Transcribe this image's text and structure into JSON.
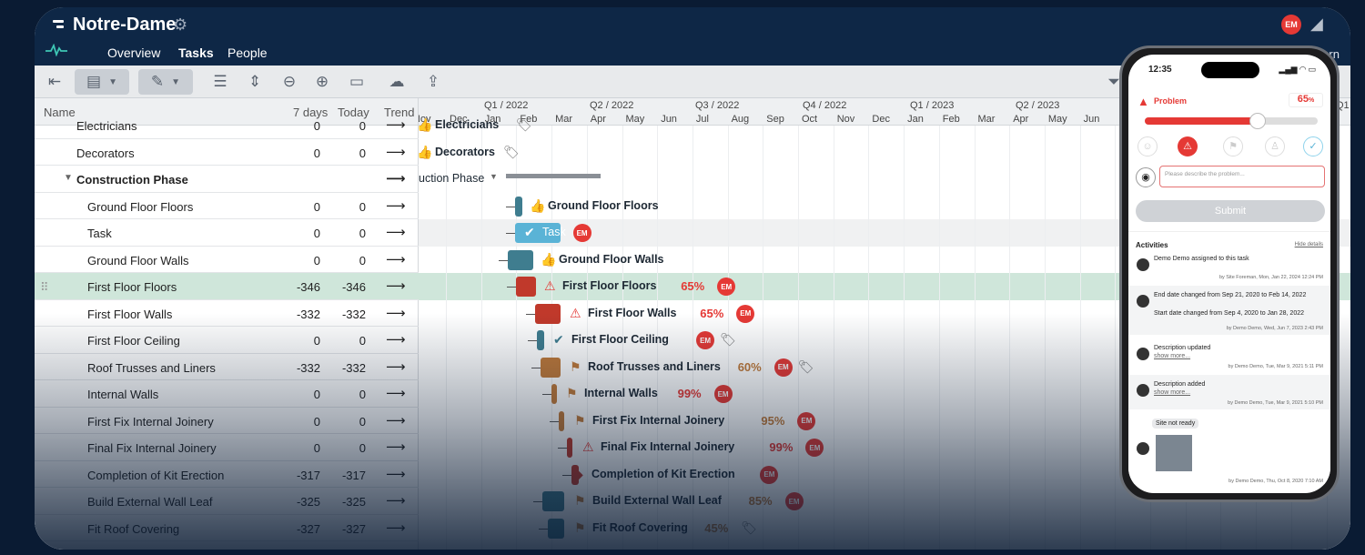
{
  "app": {
    "project_title": "Notre-Dame",
    "tabs": [
      "Overview",
      "Tasks",
      "People"
    ],
    "active_tab": "Tasks",
    "user_badge": "EM",
    "learn_label": "arn"
  },
  "grid": {
    "columns": {
      "name": "Name",
      "seven_days": "7 days",
      "today": "Today",
      "trend": "Trend"
    },
    "rows": [
      {
        "name": "Electricians",
        "d7": "0",
        "today": "0",
        "trend": "⟶"
      },
      {
        "name": "Decorators",
        "d7": "0",
        "today": "0",
        "trend": "⟶"
      },
      {
        "name": "Construction Phase",
        "d7": "",
        "today": "",
        "trend": "⟶"
      },
      {
        "name": "Ground Floor Floors",
        "d7": "0",
        "today": "0",
        "trend": "⟶"
      },
      {
        "name": "Task",
        "d7": "0",
        "today": "0",
        "trend": "⟶"
      },
      {
        "name": "Ground Floor Walls",
        "d7": "0",
        "today": "0",
        "trend": "⟶"
      },
      {
        "name": "First Floor Floors",
        "d7": "-346",
        "today": "-346",
        "trend": "⟶"
      },
      {
        "name": "First Floor Walls",
        "d7": "-332",
        "today": "-332",
        "trend": "⟶"
      },
      {
        "name": "First Floor Ceiling",
        "d7": "0",
        "today": "0",
        "trend": "⟶"
      },
      {
        "name": "Roof Trusses and Liners",
        "d7": "-332",
        "today": "-332",
        "trend": "⟶"
      },
      {
        "name": "Internal Walls",
        "d7": "0",
        "today": "0",
        "trend": "⟶"
      },
      {
        "name": "First Fix Internal Joinery",
        "d7": "0",
        "today": "0",
        "trend": "⟶"
      },
      {
        "name": "Final Fix Internal Joinery",
        "d7": "0",
        "today": "0",
        "trend": "⟶"
      },
      {
        "name": "Completion of Kit Erection",
        "d7": "-317",
        "today": "-317",
        "trend": "⟶"
      },
      {
        "name": "Build External Wall Leaf",
        "d7": "-325",
        "today": "-325",
        "trend": "⟶"
      },
      {
        "name": "Fit Roof Covering",
        "d7": "-327",
        "today": "-327",
        "trend": "⟶"
      }
    ]
  },
  "timeline": {
    "quarters": [
      "Q1 / 2022",
      "Q2 / 2022",
      "Q3 / 2022",
      "Q4 / 2022",
      "Q1 / 2023",
      "Q2 / 2023",
      "Q1"
    ],
    "months": [
      "Nov",
      "Dec",
      "Jan",
      "Feb",
      "Mar",
      "Apr",
      "May",
      "Jun",
      "Jul",
      "Aug",
      "Sep",
      "Oct",
      "Nov",
      "Dec",
      "Jan",
      "Feb",
      "Mar",
      "Apr",
      "May",
      "Jun"
    ],
    "bars": [
      {
        "label": "Electricians",
        "pct": ""
      },
      {
        "label": "Decorators",
        "pct": ""
      },
      {
        "label": "uction Phase",
        "pct": ""
      },
      {
        "label": "Ground Floor Floors",
        "pct": ""
      },
      {
        "label": "Task",
        "pct": ""
      },
      {
        "label": "Ground Floor Walls",
        "pct": ""
      },
      {
        "label": "First Floor Floors",
        "pct": "65%"
      },
      {
        "label": "First Floor Walls",
        "pct": "65%"
      },
      {
        "label": "First Floor Ceiling",
        "pct": ""
      },
      {
        "label": "Roof Trusses and Liners",
        "pct": "60%"
      },
      {
        "label": "Internal Walls",
        "pct": "99%"
      },
      {
        "label": "First Fix Internal Joinery",
        "pct": "95%"
      },
      {
        "label": "Final Fix Internal Joinery",
        "pct": "99%"
      },
      {
        "label": "Completion of Kit Erection",
        "pct": ""
      },
      {
        "label": "Build External Wall Leaf",
        "pct": "85%"
      },
      {
        "label": "Fit Roof Covering",
        "pct": "45%"
      }
    ],
    "badge": "EM"
  },
  "phone": {
    "time": "12:35",
    "status_label": "Problem",
    "progress_value": "65",
    "progress_unit": "%",
    "progress_fraction": 0.65,
    "description_placeholder": "Please describe the problem...",
    "submit_label": "Submit",
    "activities_title": "Activities",
    "hide_details": "Hide details",
    "activities": [
      {
        "title": "Demo Demo assigned to this task",
        "meta": "by Site Foreman, Mon, Jan 22, 2024 12:24 PM"
      },
      {
        "title": "End date changed from Sep 21, 2020 to Feb 14, 2022",
        "title2": "Start date changed from Sep 4, 2020 to Jan 28, 2022",
        "meta": "by Demo Demo, Wed, Jun 7, 2023 2:43 PM"
      },
      {
        "title": "Description updated",
        "link": "show more...",
        "meta": "by Demo Demo, Tue, Mar 9, 2021 5:11 PM"
      },
      {
        "title": "Description added",
        "link": "show more...",
        "meta": "by Demo Demo, Tue, Mar 9, 2021 5:10 PM"
      },
      {
        "title": "Site not ready",
        "meta": "by Demo Demo, Thu, Oct 8, 2020 7:10 AM"
      }
    ]
  },
  "colors": {
    "header": "#0e2746",
    "selected_row": "#cfe6da",
    "teal_bar": "#3f7d8f",
    "red_bar": "#c0392b",
    "orange_bar": "#c07a3a",
    "problem_red": "#e53935",
    "task_blue": "#5ab3d6"
  }
}
